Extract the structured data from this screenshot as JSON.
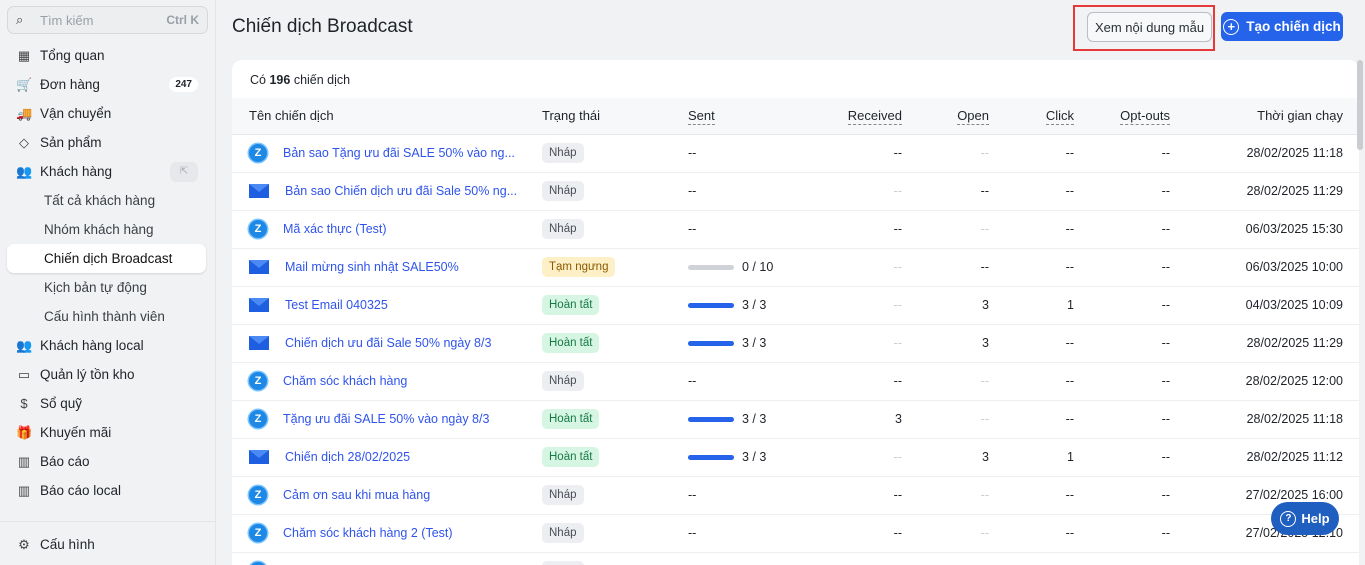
{
  "sidebar": {
    "search_placeholder": "Tìm kiếm",
    "search_shortcut": "Ctrl K",
    "items": [
      {
        "label": "Tổng quan",
        "icon": "dashboard-icon",
        "glyph": "▦"
      },
      {
        "label": "Đơn hàng",
        "icon": "cart-icon",
        "glyph": "🛒",
        "badge": "247"
      },
      {
        "label": "Vận chuyển",
        "icon": "truck-icon",
        "glyph": "🚚"
      },
      {
        "label": "Sản phẩm",
        "icon": "tag-icon",
        "glyph": "◇"
      },
      {
        "label": "Khách hàng",
        "icon": "users-icon",
        "glyph": "👥"
      },
      {
        "label": "Tất cả khách hàng",
        "sub": true
      },
      {
        "label": "Nhóm khách hàng",
        "sub": true
      },
      {
        "label": "Chiến dịch Broadcast",
        "sub": true,
        "active": true
      },
      {
        "label": "Kịch bản tự động",
        "sub": true
      },
      {
        "label": "Cấu hình thành viên",
        "sub": true
      },
      {
        "label": "Khách hàng local",
        "icon": "users-icon",
        "glyph": "👥"
      },
      {
        "label": "Quản lý tồn kho",
        "icon": "archive-icon",
        "glyph": "▭"
      },
      {
        "label": "Sổ quỹ",
        "icon": "dollar-icon",
        "glyph": "$"
      },
      {
        "label": "Khuyến mãi",
        "icon": "gift-icon",
        "glyph": "🎁"
      },
      {
        "label": "Báo cáo",
        "icon": "chart-icon",
        "glyph": "▥"
      },
      {
        "label": "Báo cáo local",
        "icon": "chart-icon",
        "glyph": "▥"
      }
    ],
    "settings_label": "Cấu hình"
  },
  "header": {
    "title": "Chiến dịch Broadcast",
    "preview_button": "Xem nội dung mẫu",
    "create_button": "Tạo chiến dịch"
  },
  "summary": {
    "prefix": "Có",
    "count": "196",
    "suffix": "chiến dịch"
  },
  "table": {
    "columns": [
      "Tên chiến dịch",
      "Trạng thái",
      "Sent",
      "Received",
      "Open",
      "Click",
      "Opt-outs",
      "Thời gian chạy"
    ],
    "rows": [
      {
        "channel": "zalo",
        "name": "Bản sao Tặng ưu đãi SALE 50% vào ng...",
        "status": "Nháp",
        "kind": "draft",
        "sent": "--",
        "received": "--",
        "open": "--",
        "click": "--",
        "optouts": "--",
        "time": "28/02/2025 11:18"
      },
      {
        "channel": "email",
        "name": "Bản sao Chiến dịch ưu đãi Sale 50% ng...",
        "status": "Nháp",
        "kind": "draft",
        "sent": "--",
        "received": "--",
        "open": "--",
        "click": "--",
        "optouts": "--",
        "time": "28/02/2025 11:29"
      },
      {
        "channel": "zalo",
        "name": "Mã xác thực (Test)",
        "status": "Nháp",
        "kind": "draft",
        "sent": "--",
        "received": "--",
        "open": "--",
        "click": "--",
        "optouts": "--",
        "time": "06/03/2025 15:30"
      },
      {
        "channel": "email",
        "name": "Mail mừng sinh nhật SALE50%",
        "status": "Tạm ngưng",
        "kind": "pause",
        "sent": "0 / 10",
        "progress": 0,
        "received": "--",
        "open": "--",
        "click": "--",
        "optouts": "--",
        "time": "06/03/2025 10:00"
      },
      {
        "channel": "email",
        "name": "Test Email 040325",
        "status": "Hoàn tất",
        "kind": "done",
        "sent": "3 / 3",
        "progress": 1,
        "received": "--",
        "open": "3",
        "click": "1",
        "optouts": "--",
        "time": "04/03/2025 10:09"
      },
      {
        "channel": "email",
        "name": "Chiến dịch ưu đãi Sale 50% ngày 8/3",
        "status": "Hoàn tất",
        "kind": "done",
        "sent": "3 / 3",
        "progress": 1,
        "received": "--",
        "open": "3",
        "click": "--",
        "optouts": "--",
        "time": "28/02/2025 11:29"
      },
      {
        "channel": "zalo",
        "name": "Chăm sóc khách hàng",
        "status": "Nháp",
        "kind": "draft",
        "sent": "--",
        "received": "--",
        "open": "--",
        "click": "--",
        "optouts": "--",
        "time": "28/02/2025 12:00"
      },
      {
        "channel": "zalo",
        "name": "Tặng ưu đãi SALE 50% vào ngày 8/3",
        "status": "Hoàn tất",
        "kind": "done",
        "sent": "3 / 3",
        "progress": 1,
        "received": "3",
        "open": "--",
        "click": "--",
        "optouts": "--",
        "time": "28/02/2025 11:18"
      },
      {
        "channel": "email",
        "name": "Chiến dịch 28/02/2025",
        "status": "Hoàn tất",
        "kind": "done",
        "sent": "3 / 3",
        "progress": 1,
        "received": "--",
        "open": "3",
        "click": "1",
        "optouts": "--",
        "time": "28/02/2025 11:12"
      },
      {
        "channel": "zalo",
        "name": "Cảm ơn sau khi mua hàng",
        "status": "Nháp",
        "kind": "draft",
        "sent": "--",
        "received": "--",
        "open": "--",
        "click": "--",
        "optouts": "--",
        "time": "27/02/2025 16:00"
      },
      {
        "channel": "zalo",
        "name": "Chăm sóc khách hàng 2 (Test)",
        "status": "Nháp",
        "kind": "draft",
        "sent": "--",
        "received": "--",
        "open": "--",
        "click": "--",
        "optouts": "--",
        "time": "27/02/2025 12:10"
      },
      {
        "channel": "zalo",
        "name": "",
        "status": "Nháp",
        "kind": "draft",
        "sent": "",
        "received": "",
        "open": "",
        "click": "",
        "optouts": "",
        "time": ""
      }
    ]
  },
  "help": {
    "label": "Help"
  },
  "colors": {
    "accent": "#2563eb",
    "link": "#2f54eb",
    "highlight_box": "#e5393a"
  }
}
